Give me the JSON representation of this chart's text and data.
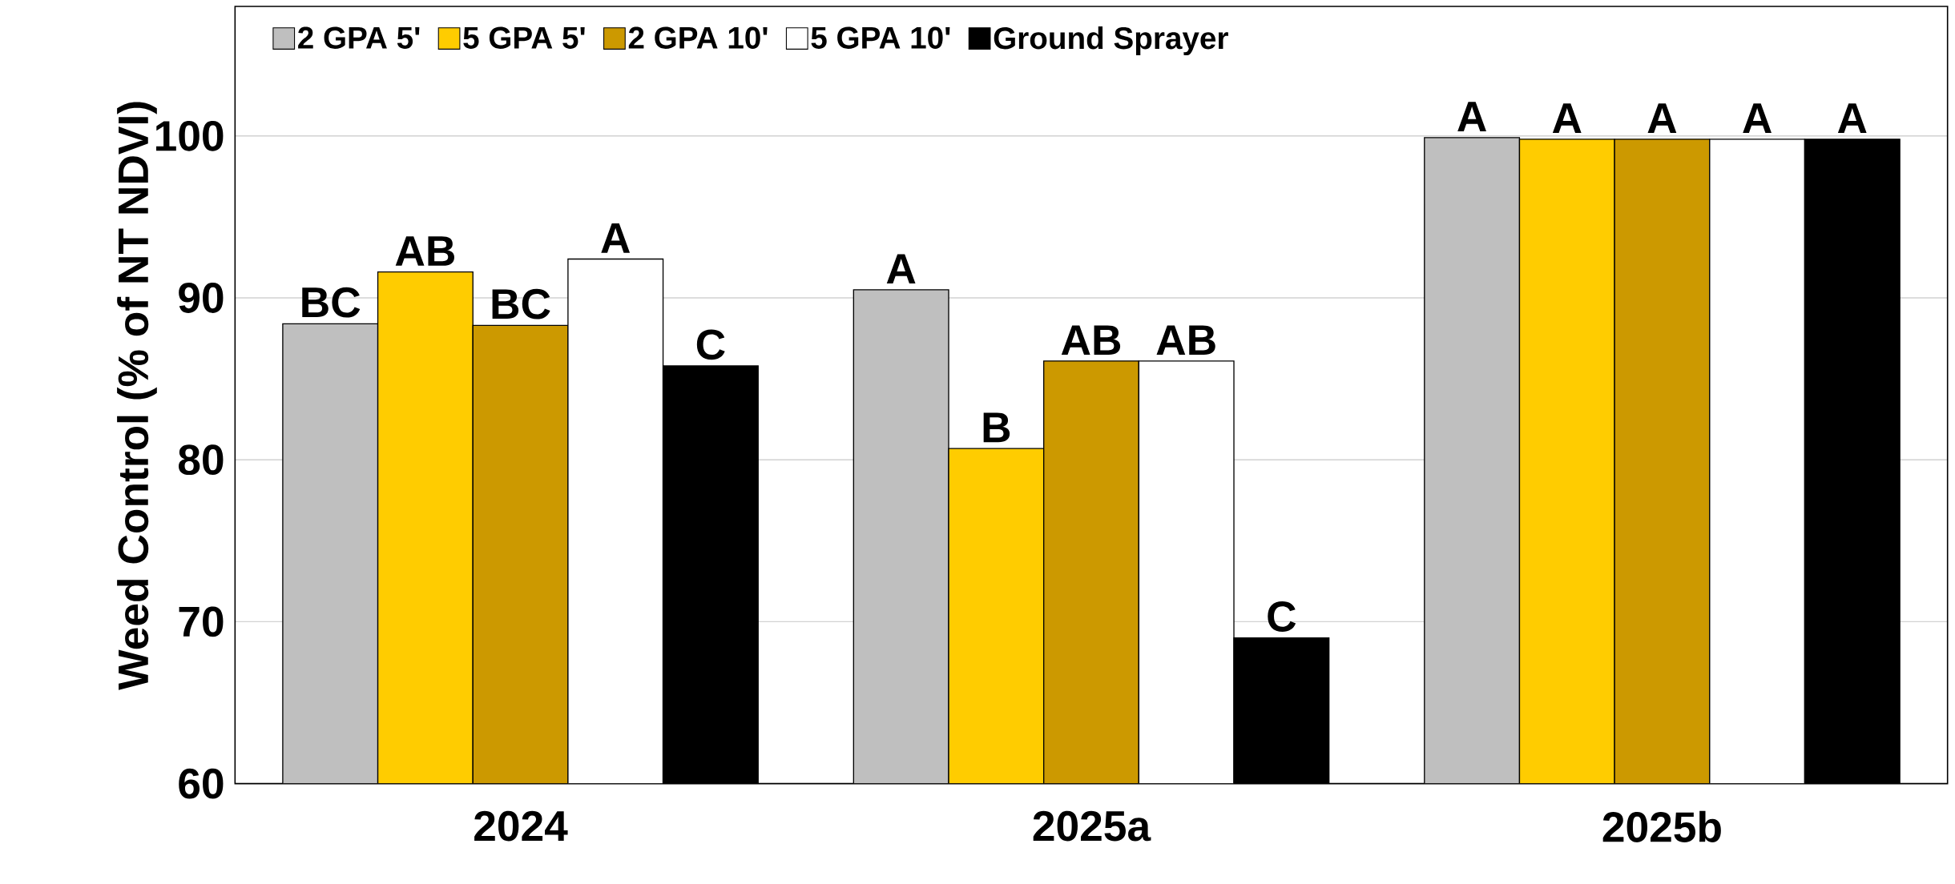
{
  "chart_data": {
    "type": "bar",
    "ylabel": "Weed Control (% of NT NDVI)",
    "categories": [
      "2024",
      "2025a",
      "2025b"
    ],
    "series": [
      {
        "name": "2 GPA 5'",
        "color": "#bfbfbf",
        "values": [
          88.4,
          90.5,
          99.9
        ],
        "value_labels": [
          "BC",
          "A",
          "A"
        ]
      },
      {
        "name": "5 GPA 5'",
        "color": "#ffcc00",
        "values": [
          91.6,
          80.7,
          99.8
        ],
        "value_labels": [
          "AB",
          "B",
          "A"
        ]
      },
      {
        "name": "2 GPA 10'",
        "color": "#cc9900",
        "values": [
          88.3,
          86.1,
          99.8
        ],
        "value_labels": [
          "BC",
          "AB",
          "A"
        ]
      },
      {
        "name": "5 GPA 10'",
        "color": "#ffffff",
        "values": [
          92.4,
          86.1,
          99.8
        ],
        "value_labels": [
          "A",
          "AB",
          "A"
        ]
      },
      {
        "name": "Ground Sprayer",
        "color": "#000000",
        "values": [
          85.8,
          69.0,
          99.8
        ],
        "value_labels": [
          "C",
          "C",
          "A"
        ]
      }
    ],
    "ylim": [
      60,
      108
    ],
    "yticks": [
      60,
      70,
      80,
      90,
      100
    ],
    "grid": "y",
    "legend": "top left"
  }
}
